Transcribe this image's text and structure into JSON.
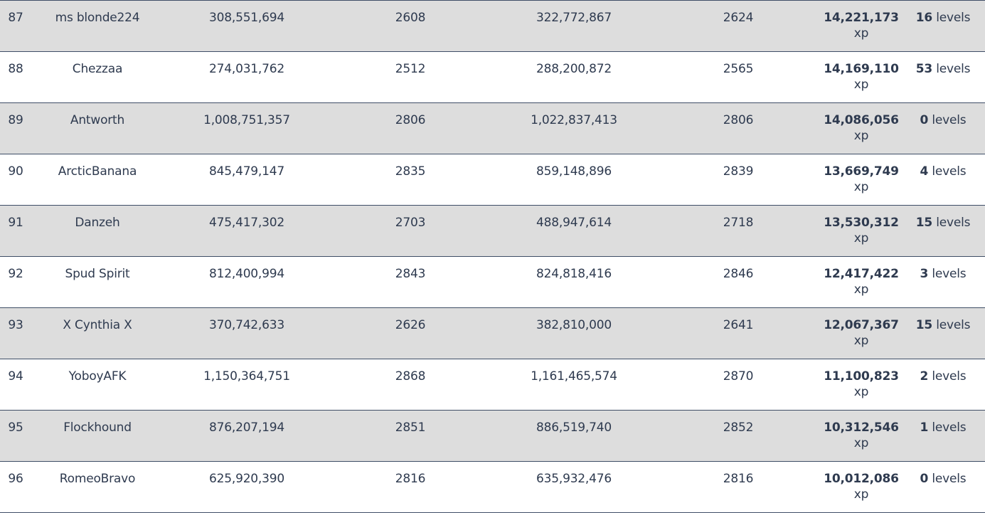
{
  "rows": [
    {
      "rank": "87",
      "name": "ms blonde224",
      "xp_start": "308,551,694",
      "level_start": "2608",
      "xp_end": "322,772,867",
      "level_end": "2624",
      "xp_gained": "14,221,173",
      "xp_unit": "xp",
      "levels_gained": "16",
      "levels_unit": "levels"
    },
    {
      "rank": "88",
      "name": "Chezzaa",
      "xp_start": "274,031,762",
      "level_start": "2512",
      "xp_end": "288,200,872",
      "level_end": "2565",
      "xp_gained": "14,169,110",
      "xp_unit": "xp",
      "levels_gained": "53",
      "levels_unit": "levels"
    },
    {
      "rank": "89",
      "name": "Antworth",
      "xp_start": "1,008,751,357",
      "level_start": "2806",
      "xp_end": "1,022,837,413",
      "level_end": "2806",
      "xp_gained": "14,086,056",
      "xp_unit": "xp",
      "levels_gained": "0",
      "levels_unit": "levels"
    },
    {
      "rank": "90",
      "name": "ArcticBanana",
      "xp_start": "845,479,147",
      "level_start": "2835",
      "xp_end": "859,148,896",
      "level_end": "2839",
      "xp_gained": "13,669,749",
      "xp_unit": "xp",
      "levels_gained": "4",
      "levels_unit": "levels"
    },
    {
      "rank": "91",
      "name": "Danzeh",
      "xp_start": "475,417,302",
      "level_start": "2703",
      "xp_end": "488,947,614",
      "level_end": "2718",
      "xp_gained": "13,530,312",
      "xp_unit": "xp",
      "levels_gained": "15",
      "levels_unit": "levels"
    },
    {
      "rank": "92",
      "name": "Spud Spirit",
      "xp_start": "812,400,994",
      "level_start": "2843",
      "xp_end": "824,818,416",
      "level_end": "2846",
      "xp_gained": "12,417,422",
      "xp_unit": "xp",
      "levels_gained": "3",
      "levels_unit": "levels"
    },
    {
      "rank": "93",
      "name": "X Cynthia X",
      "xp_start": "370,742,633",
      "level_start": "2626",
      "xp_end": "382,810,000",
      "level_end": "2641",
      "xp_gained": "12,067,367",
      "xp_unit": "xp",
      "levels_gained": "15",
      "levels_unit": "levels"
    },
    {
      "rank": "94",
      "name": "YoboyAFK",
      "xp_start": "1,150,364,751",
      "level_start": "2868",
      "xp_end": "1,161,465,574",
      "level_end": "2870",
      "xp_gained": "11,100,823",
      "xp_unit": "xp",
      "levels_gained": "2",
      "levels_unit": "levels"
    },
    {
      "rank": "95",
      "name": "Flockhound",
      "xp_start": "876,207,194",
      "level_start": "2851",
      "xp_end": "886,519,740",
      "level_end": "2852",
      "xp_gained": "10,312,546",
      "xp_unit": "xp",
      "levels_gained": "1",
      "levels_unit": "levels"
    },
    {
      "rank": "96",
      "name": "RomeoBravo",
      "xp_start": "625,920,390",
      "level_start": "2816",
      "xp_end": "635,932,476",
      "level_end": "2816",
      "xp_gained": "10,012,086",
      "xp_unit": "xp",
      "levels_gained": "0",
      "levels_unit": "levels"
    }
  ]
}
